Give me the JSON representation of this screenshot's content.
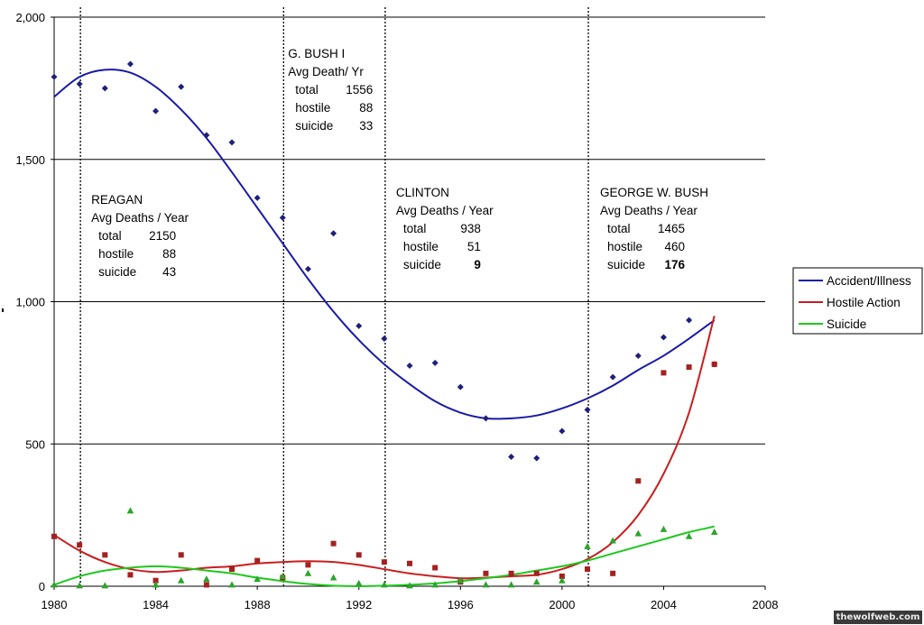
{
  "chart_data": {
    "type": "scatter",
    "title": "",
    "xlabel": "",
    "ylabel": "",
    "xlim": [
      1980,
      2008
    ],
    "ylim": [
      0,
      2000
    ],
    "x_ticks": [
      "1980",
      "1984",
      "1988",
      "1992",
      "1996",
      "2000",
      "2004",
      "2008"
    ],
    "y_ticks": [
      "0",
      "500",
      "1,000",
      "1,500",
      "2,000"
    ],
    "grid": "horizontal",
    "legend_position": "right",
    "series": [
      {
        "name": "Accident/Illness",
        "color": "#1a1aa8",
        "marker": "diamond",
        "marker_color": "#1f1f7a",
        "x": [
          1980,
          1981,
          1982,
          1983,
          1984,
          1985,
          1986,
          1987,
          1988,
          1989,
          1990,
          1991,
          1992,
          1993,
          1994,
          1995,
          1996,
          1997,
          1998,
          1999,
          2000,
          2001,
          2002,
          2003,
          2004,
          2005,
          2006
        ],
        "y": [
          1790,
          1765,
          1750,
          1835,
          1670,
          1755,
          1585,
          1560,
          1365,
          1295,
          1115,
          1240,
          915,
          870,
          775,
          785,
          700,
          590,
          455,
          450,
          545,
          620,
          735,
          810,
          875,
          935,
          780
        ],
        "trend": [
          1720,
          1790,
          1815,
          1805,
          1755,
          1675,
          1575,
          1455,
          1330,
          1205,
          1080,
          965,
          865,
          780,
          710,
          650,
          610,
          590,
          590,
          600,
          625,
          660,
          705,
          760,
          810,
          870,
          935
        ]
      },
      {
        "name": "Hostile Action",
        "color": "#c81e1e",
        "marker": "square",
        "marker_color": "#a52020",
        "x": [
          1980,
          1981,
          1982,
          1983,
          1984,
          1985,
          1986,
          1987,
          1988,
          1989,
          1990,
          1991,
          1992,
          1993,
          1994,
          1995,
          1996,
          1997,
          1998,
          1999,
          2000,
          2001,
          2002,
          2003,
          2004,
          2005,
          2006
        ],
        "y": [
          175,
          145,
          110,
          40,
          20,
          110,
          5,
          60,
          90,
          30,
          75,
          150,
          110,
          85,
          80,
          65,
          15,
          45,
          45,
          45,
          35,
          60,
          45,
          370,
          750,
          770,
          780
        ],
        "trend": [
          180,
          125,
          85,
          60,
          50,
          55,
          65,
          70,
          80,
          85,
          88,
          85,
          75,
          60,
          45,
          35,
          28,
          30,
          35,
          40,
          60,
          95,
          155,
          250,
          395,
          610,
          950
        ]
      },
      {
        "name": "Suicide",
        "color": "#1ec81e",
        "marker": "triangle",
        "marker_color": "#2aa52a",
        "x": [
          1980,
          1981,
          1982,
          1983,
          1984,
          1985,
          1986,
          1987,
          1988,
          1989,
          1990,
          1991,
          1992,
          1993,
          1994,
          1995,
          1996,
          1997,
          1998,
          1999,
          2000,
          2001,
          2002,
          2003,
          2004,
          2005,
          2006
        ],
        "y": [
          5,
          2,
          2,
          265,
          5,
          20,
          25,
          5,
          25,
          35,
          45,
          30,
          10,
          5,
          2,
          5,
          20,
          5,
          5,
          15,
          20,
          140,
          160,
          185,
          200,
          175,
          190
        ],
        "trend": [
          5,
          35,
          55,
          65,
          70,
          65,
          55,
          45,
          30,
          18,
          8,
          2,
          0,
          2,
          5,
          10,
          18,
          28,
          40,
          55,
          70,
          90,
          115,
          140,
          165,
          190,
          210
        ]
      }
    ],
    "annotations": [
      {
        "id": "reagan",
        "year": 1981,
        "lines": [
          "REAGAN",
          "Avg Deaths / Year",
          "  total       2150",
          "  hostile       88",
          "  suicide       43"
        ]
      },
      {
        "id": "bush1",
        "year": 1989,
        "lines": [
          "G. BUSH I",
          "Avg Death/ Yr",
          "  total       1556",
          "  hostile       88",
          "  suicide       33"
        ]
      },
      {
        "id": "clinton",
        "year": 1993,
        "lines": [
          "CLINTON",
          "Avg Deaths / Year",
          "  total        938",
          "  hostile       51",
          "  suicide        9"
        ]
      },
      {
        "id": "gwbush",
        "year": 2001,
        "lines": [
          "GEORGE W. BUSH",
          "Avg Deaths / Year",
          "  total       1465",
          "  hostile      460",
          "  suicide      176"
        ]
      }
    ]
  },
  "watermark": "thewolfweb.com"
}
